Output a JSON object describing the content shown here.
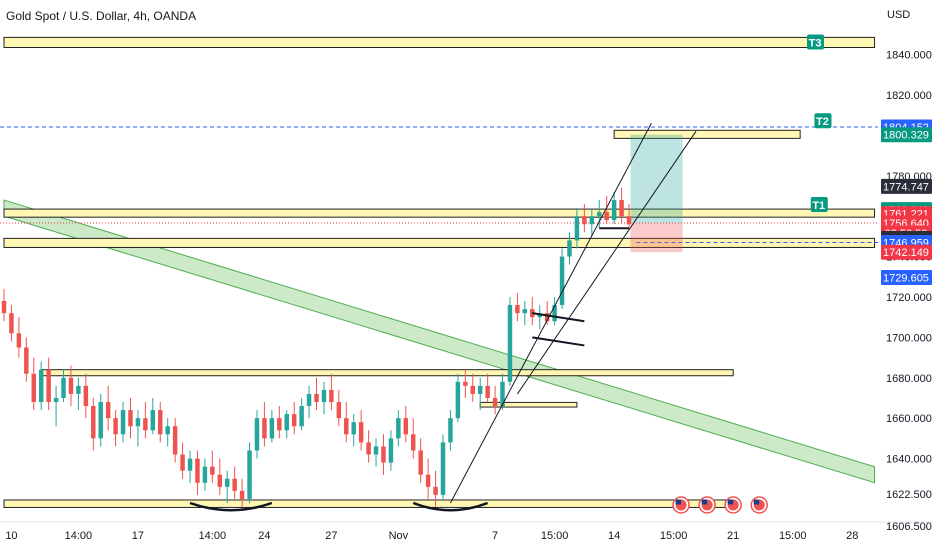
{
  "title": "Gold Spot / U.S. Dollar, 4h, OANDA",
  "currency_label": "USD",
  "colors": {
    "up": "#26a69a",
    "down": "#ef5350",
    "zone_fill": "#fff7b3",
    "zone_stroke": "#222222",
    "channel_fill": "#b7e0b0",
    "channel_stroke": "#4caf50",
    "target_bg": "#089981",
    "blue": "#2962ff",
    "red": "#f23645",
    "gray": "#2a2e39",
    "green": "#089981"
  },
  "chart_data": {
    "type": "candlestick",
    "title": "Gold Spot / U.S. Dollar, 4h, OANDA",
    "y_axis_label": "USD",
    "ylim": [
      1604,
      1858
    ],
    "y_ticks": [
      1606.5,
      1622.5,
      1640,
      1660,
      1680,
      1700,
      1720,
      1740,
      1760,
      1780,
      1800,
      1820,
      1840
    ],
    "y_tick_labels": [
      "1606.500",
      "1622.500",
      "1640.000",
      "1660.000",
      "1680.000",
      "1700.000",
      "1720.000",
      "1740.000",
      "1760.000",
      "1780.000",
      "1800.000",
      "1820.000",
      "1840.000"
    ],
    "x_ticks": [
      {
        "label": "10",
        "bar": 1
      },
      {
        "label": "14:00",
        "bar": 10
      },
      {
        "label": "17",
        "bar": 18
      },
      {
        "label": "14:00",
        "bar": 28
      },
      {
        "label": "24",
        "bar": 35
      },
      {
        "label": "27",
        "bar": 44
      },
      {
        "label": "Nov",
        "bar": 53
      },
      {
        "label": "7",
        "bar": 66
      },
      {
        "label": "15:00",
        "bar": 74
      },
      {
        "label": "14",
        "bar": 82
      },
      {
        "label": "15:00",
        "bar": 90
      },
      {
        "label": "21",
        "bar": 98
      },
      {
        "label": "15:00",
        "bar": 106
      },
      {
        "label": "28",
        "bar": 114
      }
    ],
    "x_range_bars": [
      0,
      117
    ],
    "candles": [
      [
        1718,
        1724,
        1708,
        1712
      ],
      [
        1712,
        1716,
        1698,
        1702
      ],
      [
        1702,
        1710,
        1690,
        1695
      ],
      [
        1695,
        1700,
        1678,
        1682
      ],
      [
        1682,
        1690,
        1664,
        1668
      ],
      [
        1668,
        1688,
        1664,
        1684
      ],
      [
        1684,
        1690,
        1664,
        1668
      ],
      [
        1668,
        1676,
        1656,
        1670
      ],
      [
        1670,
        1684,
        1668,
        1680
      ],
      [
        1680,
        1686,
        1666,
        1672
      ],
      [
        1672,
        1680,
        1664,
        1676
      ],
      [
        1676,
        1682,
        1660,
        1666
      ],
      [
        1666,
        1670,
        1644,
        1650
      ],
      [
        1650,
        1672,
        1646,
        1668
      ],
      [
        1668,
        1676,
        1654,
        1660
      ],
      [
        1660,
        1664,
        1646,
        1652
      ],
      [
        1652,
        1668,
        1648,
        1664
      ],
      [
        1664,
        1670,
        1650,
        1656
      ],
      [
        1656,
        1664,
        1646,
        1660
      ],
      [
        1660,
        1668,
        1650,
        1654
      ],
      [
        1654,
        1670,
        1652,
        1664
      ],
      [
        1664,
        1668,
        1648,
        1652
      ],
      [
        1652,
        1660,
        1646,
        1656
      ],
      [
        1656,
        1660,
        1638,
        1642
      ],
      [
        1642,
        1648,
        1630,
        1634
      ],
      [
        1634,
        1644,
        1628,
        1640
      ],
      [
        1640,
        1644,
        1622,
        1628
      ],
      [
        1628,
        1640,
        1624,
        1636
      ],
      [
        1636,
        1644,
        1628,
        1632
      ],
      [
        1632,
        1640,
        1622,
        1626
      ],
      [
        1626,
        1634,
        1618,
        1630
      ],
      [
        1630,
        1636,
        1620,
        1624
      ],
      [
        1624,
        1630,
        1616,
        1620
      ],
      [
        1620,
        1648,
        1618,
        1644
      ],
      [
        1644,
        1664,
        1640,
        1660
      ],
      [
        1660,
        1668,
        1646,
        1650
      ],
      [
        1650,
        1664,
        1648,
        1660
      ],
      [
        1660,
        1666,
        1650,
        1654
      ],
      [
        1654,
        1664,
        1650,
        1662
      ],
      [
        1662,
        1668,
        1652,
        1656
      ],
      [
        1656,
        1670,
        1654,
        1666
      ],
      [
        1666,
        1676,
        1660,
        1672
      ],
      [
        1672,
        1680,
        1664,
        1668
      ],
      [
        1668,
        1678,
        1662,
        1674
      ],
      [
        1674,
        1682,
        1664,
        1668
      ],
      [
        1668,
        1674,
        1656,
        1660
      ],
      [
        1660,
        1668,
        1648,
        1652
      ],
      [
        1652,
        1662,
        1646,
        1658
      ],
      [
        1658,
        1664,
        1644,
        1648
      ],
      [
        1648,
        1654,
        1638,
        1642
      ],
      [
        1642,
        1650,
        1636,
        1646
      ],
      [
        1646,
        1652,
        1632,
        1638
      ],
      [
        1638,
        1654,
        1634,
        1650
      ],
      [
        1650,
        1664,
        1646,
        1660
      ],
      [
        1660,
        1666,
        1648,
        1652
      ],
      [
        1652,
        1660,
        1640,
        1644
      ],
      [
        1644,
        1650,
        1628,
        1632
      ],
      [
        1632,
        1640,
        1620,
        1626
      ],
      [
        1626,
        1634,
        1616,
        1622
      ],
      [
        1622,
        1652,
        1620,
        1648
      ],
      [
        1648,
        1664,
        1644,
        1660
      ],
      [
        1660,
        1682,
        1658,
        1678
      ],
      [
        1678,
        1684,
        1670,
        1676
      ],
      [
        1676,
        1682,
        1668,
        1672
      ],
      [
        1672,
        1680,
        1664,
        1676
      ],
      [
        1676,
        1682,
        1668,
        1670
      ],
      [
        1670,
        1676,
        1662,
        1666
      ],
      [
        1666,
        1682,
        1664,
        1678
      ],
      [
        1678,
        1720,
        1676,
        1716
      ],
      [
        1716,
        1722,
        1708,
        1712
      ],
      [
        1712,
        1718,
        1706,
        1714
      ],
      [
        1714,
        1720,
        1706,
        1710
      ],
      [
        1710,
        1716,
        1704,
        1712
      ],
      [
        1712,
        1718,
        1706,
        1708
      ],
      [
        1708,
        1720,
        1706,
        1716
      ],
      [
        1716,
        1744,
        1714,
        1740
      ],
      [
        1740,
        1752,
        1736,
        1748
      ],
      [
        1748,
        1764,
        1744,
        1760
      ],
      [
        1760,
        1766,
        1752,
        1756
      ],
      [
        1756,
        1764,
        1750,
        1760
      ],
      [
        1760,
        1768,
        1754,
        1762
      ],
      [
        1762,
        1770,
        1756,
        1758
      ],
      [
        1758,
        1772,
        1756,
        1768
      ],
      [
        1768,
        1774,
        1756,
        1760
      ],
      [
        1760,
        1766,
        1754,
        1756
      ]
    ]
  },
  "zones": [
    {
      "label": "T3",
      "low": 1843.5,
      "high": 1848.5,
      "from_bar": 0,
      "to_bar": 117
    },
    {
      "label": "T2",
      "low": 1798.5,
      "high": 1802.5,
      "from_bar": 82,
      "to_bar": 107
    },
    {
      "label": "T1",
      "low": 1759.5,
      "high": 1763.5,
      "from_bar": 0,
      "to_bar": 117
    },
    {
      "label": "",
      "low": 1744.5,
      "high": 1749.0,
      "from_bar": 0,
      "to_bar": 117
    },
    {
      "label": "",
      "low": 1681,
      "high": 1684,
      "from_bar": 5,
      "to_bar": 98
    },
    {
      "label": "",
      "low": 1615.8,
      "high": 1619.5,
      "from_bar": 0,
      "to_bar": 98
    },
    {
      "label": "",
      "low": 1665.5,
      "high": 1667.8,
      "from_bar": 64,
      "to_bar": 77
    }
  ],
  "target_labels": [
    {
      "text": "T3",
      "price": 1846,
      "bar": 109
    },
    {
      "text": "T2",
      "price": 1807,
      "bar": 110
    },
    {
      "text": "T1",
      "price": 1765.5,
      "bar": 109.5
    }
  ],
  "price_labels": [
    {
      "text": "1804.152",
      "price": 1804.152,
      "color": "blue"
    },
    {
      "text": "1800.329",
      "price": 1800.329,
      "color": "green"
    },
    {
      "text": "1774.747",
      "price": 1774.747,
      "color": "gray"
    },
    {
      "text": "1763.240",
      "price": 1763.24,
      "color": "green"
    },
    {
      "text": "1761.221",
      "price": 1761.221,
      "color": "red"
    },
    {
      "text": "1756.640",
      "price": 1756.64,
      "color": "red"
    },
    {
      "text": "03:56:58",
      "price": 1751.6,
      "color": "red"
    },
    {
      "text": "1748.961",
      "price": 1748.961,
      "color": "gray"
    },
    {
      "text": "1746.959",
      "price": 1746.959,
      "color": "blue"
    },
    {
      "text": "1742.149",
      "price": 1742.149,
      "color": "red"
    },
    {
      "text": "1729.605",
      "price": 1729.605,
      "color": "blue"
    }
  ],
  "horizontal_lines": [
    {
      "price": 1804.152,
      "style": "dashed",
      "color": "blue"
    },
    {
      "price": 1756.64,
      "style": "dotted",
      "color": "red"
    },
    {
      "price": 1746.959,
      "style": "dashed",
      "color": "blue",
      "from_bar": 85
    }
  ],
  "trend_band": {
    "from": [
      0,
      1764
    ],
    "to": [
      117,
      1632
    ],
    "thickness": 8
  },
  "channel": [
    {
      "from": [
        60,
        1618
      ],
      "to": [
        87,
        1806
      ]
    },
    {
      "from": [
        69,
        1672
      ],
      "to": [
        93,
        1802
      ]
    }
  ],
  "flags": [
    {
      "a": [
        71,
        1712
      ],
      "b": [
        78,
        1708
      ]
    },
    {
      "a": [
        71,
        1700
      ],
      "b": [
        78,
        1696
      ]
    },
    {
      "a": [
        80,
        1754
      ],
      "b": [
        84,
        1754
      ]
    }
  ],
  "position": {
    "from_bar": 84.2,
    "to_bar": 91.2,
    "entry": 1756.64,
    "target": 1800.329,
    "stop": 1742.149
  },
  "arcs": [
    {
      "from_bar": 25,
      "to_bar": 36,
      "price": 1618,
      "depth": 6
    },
    {
      "from_bar": 55,
      "to_bar": 65,
      "price": 1618,
      "depth": 6
    }
  ],
  "event_icons": [
    {
      "name": "us-flag-icon",
      "bar": 91
    },
    {
      "name": "us-flag-icon",
      "bar": 94.5
    },
    {
      "name": "us-flag-icon",
      "bar": 98
    },
    {
      "name": "us-flag-icon",
      "bar": 101.5
    }
  ]
}
